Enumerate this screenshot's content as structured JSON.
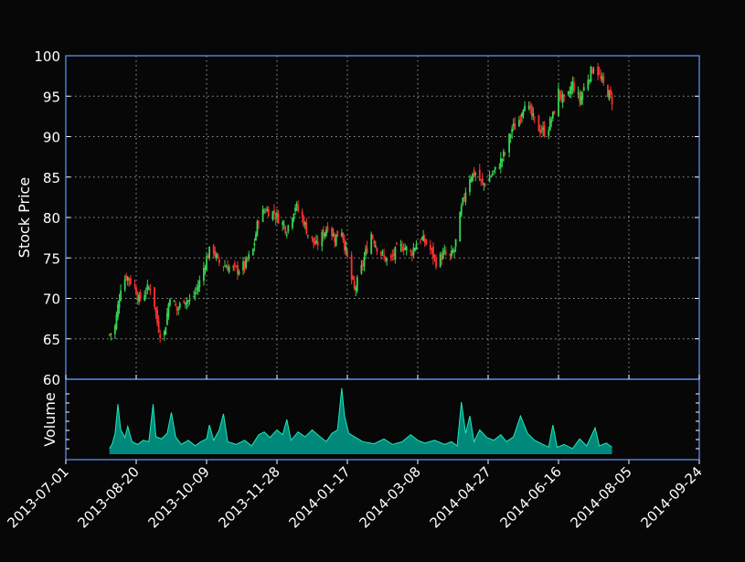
{
  "colors": {
    "background": "#070707",
    "frame": "#5b8df0",
    "grid": "#bfbfbf",
    "up": "#39d353",
    "down": "#ff3030",
    "volume_fill": "#00897b",
    "volume_line": "#1de9b6",
    "text": "#ffffff"
  },
  "chart_data": [
    {
      "type": "candlestick",
      "ylabel": "Stock Price",
      "ylim": [
        60,
        100
      ],
      "y_ticks": [
        "60",
        "65",
        "70",
        "75",
        "80",
        "85",
        "90",
        "95",
        "100"
      ],
      "xlim": [
        "2013-07-01",
        "2014-09-24"
      ],
      "x_ticks": [
        "2013-07-01",
        "2013-08-20",
        "2013-10-09",
        "2013-11-28",
        "2014-01-17",
        "2014-03-08",
        "2014-04-27",
        "2014-06-16",
        "2014-08-05",
        "2014-09-24"
      ],
      "grid": true,
      "close_path": [
        [
          "2013-08-01",
          65.5
        ],
        [
          "2013-08-05",
          66.5
        ],
        [
          "2013-08-09",
          71.5
        ],
        [
          "2013-08-13",
          72.8
        ],
        [
          "2013-08-19",
          71.5
        ],
        [
          "2013-08-22",
          69.8
        ],
        [
          "2013-08-27",
          71.0
        ],
        [
          "2013-08-31",
          71.5
        ],
        [
          "2013-09-04",
          67.0
        ],
        [
          "2013-09-08",
          64.5
        ],
        [
          "2013-09-13",
          70.5
        ],
        [
          "2013-09-18",
          68.5
        ],
        [
          "2013-09-23",
          70.0
        ],
        [
          "2013-09-28",
          69.5
        ],
        [
          "2013-10-04",
          72.0
        ],
        [
          "2013-10-09",
          75.0
        ],
        [
          "2013-10-13",
          76.5
        ],
        [
          "2013-10-17",
          74.5
        ],
        [
          "2013-10-23",
          74.0
        ],
        [
          "2013-10-30",
          73.5
        ],
        [
          "2013-11-05",
          74.0
        ],
        [
          "2013-11-11",
          76.0
        ],
        [
          "2013-11-15",
          80.0
        ],
        [
          "2013-11-20",
          81.0
        ],
        [
          "2013-11-26",
          80.5
        ],
        [
          "2013-12-01",
          79.5
        ],
        [
          "2013-12-05",
          78.5
        ],
        [
          "2013-12-11",
          81.5
        ],
        [
          "2013-12-17",
          79.5
        ],
        [
          "2013-12-21",
          77.5
        ],
        [
          "2013-12-26",
          76.5
        ],
        [
          "2013-12-31",
          78.0
        ],
        [
          "2014-01-03",
          79.0
        ],
        [
          "2014-01-08",
          77.5
        ],
        [
          "2014-01-13",
          78.5
        ],
        [
          "2014-01-19",
          73.0
        ],
        [
          "2014-01-22",
          71.0
        ],
        [
          "2014-01-26",
          73.0
        ],
        [
          "2014-01-29",
          75.0
        ],
        [
          "2014-02-03",
          78.0
        ],
        [
          "2014-02-08",
          76.0
        ],
        [
          "2014-02-12",
          75.0
        ],
        [
          "2014-02-16",
          74.5
        ],
        [
          "2014-02-21",
          76.0
        ],
        [
          "2014-02-26",
          76.5
        ],
        [
          "2014-03-03",
          75.5
        ],
        [
          "2014-03-09",
          77.5
        ],
        [
          "2014-03-13",
          77.0
        ],
        [
          "2014-03-17",
          76.0
        ],
        [
          "2014-03-21",
          74.5
        ],
        [
          "2014-03-27",
          75.5
        ],
        [
          "2014-03-31",
          75.0
        ],
        [
          "2014-04-03",
          76.0
        ],
        [
          "2014-04-08",
          81.0
        ],
        [
          "2014-04-13",
          85.0
        ],
        [
          "2014-04-18",
          85.5
        ],
        [
          "2014-04-23",
          84.0
        ],
        [
          "2014-04-28",
          85.0
        ],
        [
          "2014-05-03",
          86.0
        ],
        [
          "2014-05-09",
          88.0
        ],
        [
          "2014-05-14",
          91.0
        ],
        [
          "2014-05-18",
          91.5
        ],
        [
          "2014-05-23",
          94.5
        ],
        [
          "2014-05-28",
          92.5
        ],
        [
          "2014-06-02",
          91.0
        ],
        [
          "2014-06-07",
          90.5
        ],
        [
          "2014-06-12",
          92.5
        ],
        [
          "2014-06-16",
          95.5
        ],
        [
          "2014-06-21",
          94.0
        ],
        [
          "2014-06-26",
          96.5
        ],
        [
          "2014-07-01",
          94.5
        ],
        [
          "2014-07-06",
          97.0
        ],
        [
          "2014-07-12",
          99.0
        ],
        [
          "2014-07-16",
          97.0
        ],
        [
          "2014-07-21",
          95.5
        ],
        [
          "2014-07-24",
          94.5
        ]
      ]
    },
    {
      "type": "area",
      "ylabel": "Volume",
      "ylim": [
        0,
        1
      ],
      "volume_path": [
        [
          "2013-08-01",
          0.08
        ],
        [
          "2013-08-03",
          0.15
        ],
        [
          "2013-08-05",
          0.3
        ],
        [
          "2013-08-07",
          0.72
        ],
        [
          "2013-08-09",
          0.35
        ],
        [
          "2013-08-12",
          0.24
        ],
        [
          "2013-08-14",
          0.4
        ],
        [
          "2013-08-17",
          0.18
        ],
        [
          "2013-08-21",
          0.14
        ],
        [
          "2013-08-25",
          0.2
        ],
        [
          "2013-08-29",
          0.18
        ],
        [
          "2013-09-01",
          0.72
        ],
        [
          "2013-09-03",
          0.25
        ],
        [
          "2013-09-07",
          0.22
        ],
        [
          "2013-09-11",
          0.3
        ],
        [
          "2013-09-14",
          0.6
        ],
        [
          "2013-09-17",
          0.25
        ],
        [
          "2013-09-21",
          0.14
        ],
        [
          "2013-09-26",
          0.2
        ],
        [
          "2013-10-01",
          0.12
        ],
        [
          "2013-10-05",
          0.18
        ],
        [
          "2013-10-09",
          0.22
        ],
        [
          "2013-10-11",
          0.42
        ],
        [
          "2013-10-14",
          0.2
        ],
        [
          "2013-10-18",
          0.35
        ],
        [
          "2013-10-21",
          0.58
        ],
        [
          "2013-10-24",
          0.18
        ],
        [
          "2013-10-30",
          0.14
        ],
        [
          "2013-11-05",
          0.2
        ],
        [
          "2013-11-10",
          0.12
        ],
        [
          "2013-11-15",
          0.28
        ],
        [
          "2013-11-19",
          0.32
        ],
        [
          "2013-11-23",
          0.24
        ],
        [
          "2013-11-28",
          0.35
        ],
        [
          "2013-12-02",
          0.28
        ],
        [
          "2013-12-05",
          0.5
        ],
        [
          "2013-12-08",
          0.2
        ],
        [
          "2013-12-13",
          0.32
        ],
        [
          "2013-12-18",
          0.25
        ],
        [
          "2013-12-23",
          0.35
        ],
        [
          "2013-12-28",
          0.26
        ],
        [
          "2014-01-02",
          0.18
        ],
        [
          "2014-01-06",
          0.3
        ],
        [
          "2014-01-10",
          0.35
        ],
        [
          "2014-01-13",
          0.95
        ],
        [
          "2014-01-15",
          0.55
        ],
        [
          "2014-01-18",
          0.3
        ],
        [
          "2014-01-23",
          0.24
        ],
        [
          "2014-01-28",
          0.18
        ],
        [
          "2014-02-05",
          0.15
        ],
        [
          "2014-02-12",
          0.22
        ],
        [
          "2014-02-18",
          0.14
        ],
        [
          "2014-02-25",
          0.18
        ],
        [
          "2014-03-03",
          0.28
        ],
        [
          "2014-03-08",
          0.2
        ],
        [
          "2014-03-13",
          0.16
        ],
        [
          "2014-03-20",
          0.2
        ],
        [
          "2014-03-27",
          0.14
        ],
        [
          "2014-04-01",
          0.18
        ],
        [
          "2014-04-05",
          0.12
        ],
        [
          "2014-04-08",
          0.75
        ],
        [
          "2014-04-11",
          0.3
        ],
        [
          "2014-04-14",
          0.55
        ],
        [
          "2014-04-17",
          0.18
        ],
        [
          "2014-04-21",
          0.35
        ],
        [
          "2014-04-26",
          0.24
        ],
        [
          "2014-05-01",
          0.2
        ],
        [
          "2014-05-06",
          0.28
        ],
        [
          "2014-05-10",
          0.18
        ],
        [
          "2014-05-15",
          0.25
        ],
        [
          "2014-05-20",
          0.55
        ],
        [
          "2014-05-25",
          0.3
        ],
        [
          "2014-05-30",
          0.2
        ],
        [
          "2014-06-04",
          0.15
        ],
        [
          "2014-06-09",
          0.1
        ],
        [
          "2014-06-12",
          0.42
        ],
        [
          "2014-06-15",
          0.1
        ],
        [
          "2014-06-20",
          0.14
        ],
        [
          "2014-06-26",
          0.08
        ],
        [
          "2014-07-01",
          0.22
        ],
        [
          "2014-07-06",
          0.12
        ],
        [
          "2014-07-12",
          0.38
        ],
        [
          "2014-07-15",
          0.12
        ],
        [
          "2014-07-20",
          0.16
        ],
        [
          "2014-07-24",
          0.1
        ]
      ]
    }
  ]
}
